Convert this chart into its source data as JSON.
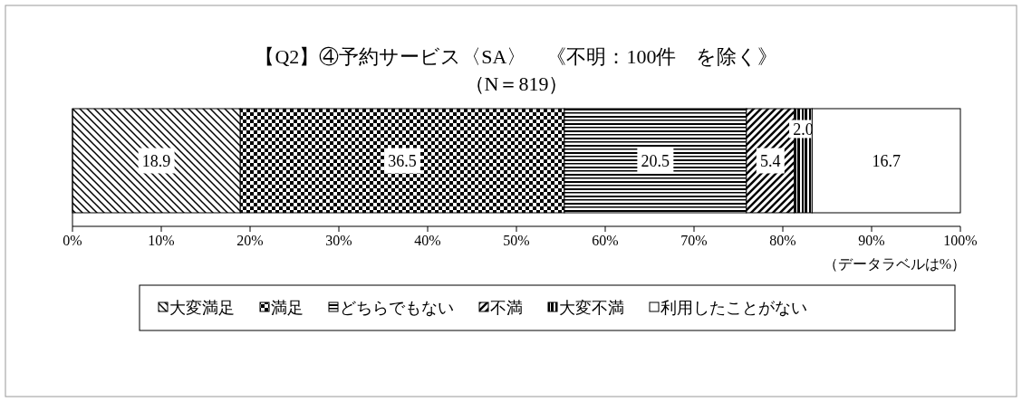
{
  "chart_data": {
    "type": "bar",
    "orientation": "horizontal",
    "stacked": true,
    "title": "【Q2】④予約サービス〈SA〉　《不明：100件　を除く》",
    "subtitle": "（N＝819）",
    "categories": [
      null
    ],
    "series": [
      {
        "name": "大変満足",
        "color": "#000000",
        "values": [
          18.9
        ],
        "value_labels": [
          "18.9"
        ]
      },
      {
        "name": "満足",
        "color": "#000000",
        "values": [
          36.5
        ],
        "value_labels": [
          "36.5"
        ]
      },
      {
        "name": "どちらでもない",
        "color": "#000000",
        "values": [
          20.5
        ],
        "value_labels": [
          "20.5"
        ]
      },
      {
        "name": "不満",
        "color": "#000000",
        "values": [
          5.4
        ],
        "value_labels": [
          "5.4"
        ]
      },
      {
        "name": "大変不満",
        "color": "#000000",
        "values": [
          2.0
        ],
        "value_labels": [
          "2.0"
        ]
      },
      {
        "name": "利用したことがない",
        "color": "#ffffff",
        "values": [
          16.7
        ],
        "value_labels": [
          "16.7"
        ]
      }
    ],
    "xlim": [
      0,
      100
    ],
    "xticks": [
      {
        "value": 0,
        "label": "0%"
      },
      {
        "value": 10,
        "label": "10%"
      },
      {
        "value": 20,
        "label": "20%"
      },
      {
        "value": 30,
        "label": "30%"
      },
      {
        "value": 40,
        "label": "40%"
      },
      {
        "value": 50,
        "label": "50%"
      },
      {
        "value": 60,
        "label": "60%"
      },
      {
        "value": 70,
        "label": "70%"
      },
      {
        "value": 80,
        "label": "80%"
      },
      {
        "value": 90,
        "label": "90%"
      },
      {
        "value": 100,
        "label": "100%"
      }
    ],
    "annotations": [
      "（データラベルは%）"
    ],
    "legend": "bottom"
  }
}
